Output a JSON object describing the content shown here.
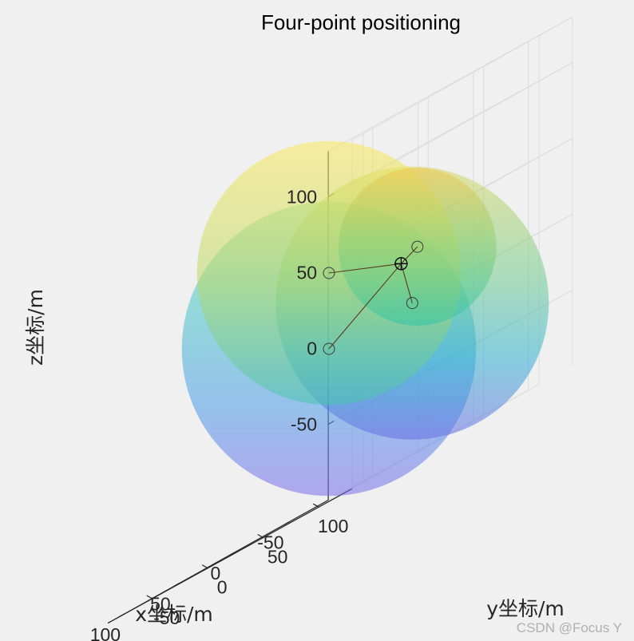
{
  "watermark": "CSDN @Focus Y",
  "chart_data": {
    "type": "scatter3d",
    "title": "Four-point positioning",
    "xlabel": "x坐标/m",
    "ylabel": "y坐标/m",
    "zlabel": "z坐标/m",
    "xlim": [
      -90,
      110
    ],
    "ylim": [
      -90,
      130
    ],
    "zlim": [
      -100,
      130
    ],
    "xticks": [
      {
        "v": -50,
        "label": "-50"
      },
      {
        "v": 0,
        "label": "0"
      },
      {
        "v": 50,
        "label": "50"
      },
      {
        "v": 100,
        "label": "100"
      }
    ],
    "yticks": [
      {
        "v": -50,
        "label": "-50"
      },
      {
        "v": 0,
        "label": "0"
      },
      {
        "v": 50,
        "label": "50"
      },
      {
        "v": 100,
        "label": "100"
      }
    ],
    "zticks": [
      {
        "v": -50,
        "label": "-50"
      },
      {
        "v": 0,
        "label": "0"
      },
      {
        "v": 50,
        "label": "50"
      },
      {
        "v": 100,
        "label": "100"
      }
    ],
    "grid": true,
    "colormap": "parula",
    "anchors": [
      {
        "x": 0,
        "y": 0,
        "z": 0,
        "r": 97
      },
      {
        "x": 0,
        "y": 0,
        "z": 50,
        "r": 87
      },
      {
        "x": 0,
        "y": 75,
        "z": 0,
        "r": 90
      },
      {
        "x": -40,
        "y": 40,
        "z": 35,
        "r": 52
      }
    ],
    "target": {
      "x": 5,
      "y": 70,
      "z": 30
    }
  }
}
